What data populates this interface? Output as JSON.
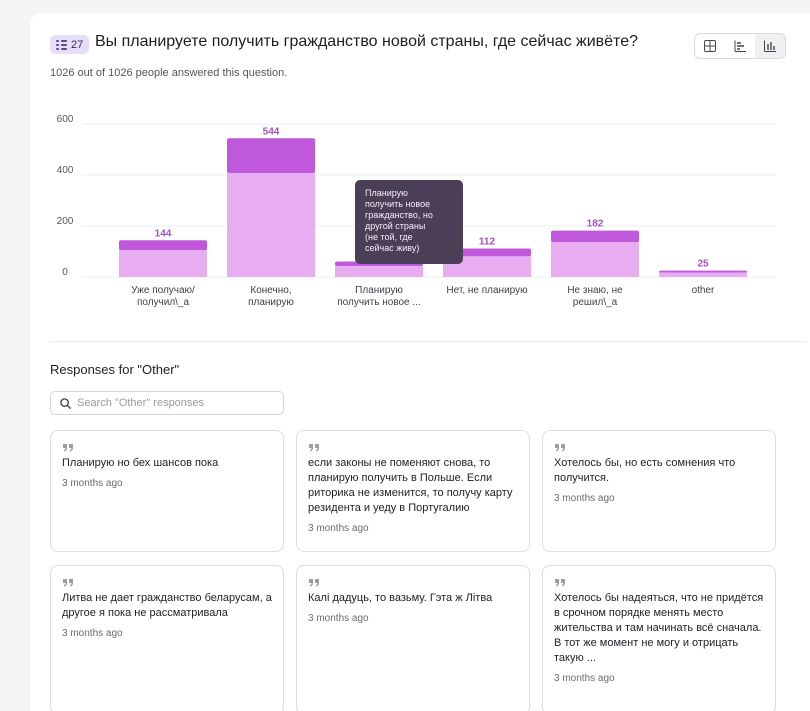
{
  "question": {
    "badge_count": "27",
    "title": "Вы планируете получить гражданство новой страны, где сейчас живёте?",
    "answered_text": "1026 out of 1026 people answered this question."
  },
  "view_toggle": {
    "items": [
      {
        "icon": "grid-icon"
      },
      {
        "icon": "bar-horizontal-icon"
      },
      {
        "icon": "bar-vertical-icon",
        "active": true
      }
    ]
  },
  "chart_data": {
    "type": "bar",
    "categories": [
      [
        "Уже получаю/",
        "получил\\_а"
      ],
      [
        "Конечно,",
        "планирую"
      ],
      [
        "Планирую",
        "получить новое ..."
      ],
      [
        "Нет, не планирую"
      ],
      [
        "Не знаю, не",
        "решил\\_а"
      ],
      [
        "other"
      ]
    ],
    "values": [
      144,
      544,
      61,
      112,
      182,
      25
    ],
    "data_labels": [
      "144",
      "544",
      "",
      "112",
      "182",
      "25"
    ],
    "highlight_fraction": [
      0.27,
      0.25,
      0.3,
      0.28,
      0.25,
      0.3
    ],
    "yticks": [
      "0",
      "200",
      "400",
      "600"
    ],
    "ylim": [
      0,
      600
    ],
    "grid": true,
    "colors": {
      "dark": "#c058dc",
      "light": "#e8adf1",
      "label": "#a94fc4"
    }
  },
  "tooltip": {
    "lines": [
      "Планирую",
      "получить новое",
      "гражданство, но",
      "другой страны",
      "(не той, где",
      "сейчас живу)"
    ]
  },
  "responses": {
    "title": "Responses for \"Other\"",
    "search_placeholder": "Search \"Other\" responses",
    "items": [
      {
        "text": "Планирую но бех шансов пока",
        "ago": "3 months ago"
      },
      {
        "text": "если законы не поменяют снова, то планирую получить в Польше. Если риторика не изменится, то получу карту резидента и уеду в Португалию",
        "ago": "3 months ago"
      },
      {
        "text": "Хотелось бы, но есть сомнения что получится.",
        "ago": "3 months ago"
      },
      {
        "text": "Литва не дает гражданство беларусам, а другое я пока не рассматривала",
        "ago": "3 months ago"
      },
      {
        "text": "Калі дадуць, то вазьму. Гэта ж Літва",
        "ago": "3 months ago"
      },
      {
        "text": "Хотелось бы надеяться, что не придётся в срочном порядке менять место жительства и там начинать всё сначала. В тот же момент не могу и отрицать такую ...",
        "ago": "3 months ago"
      }
    ]
  }
}
